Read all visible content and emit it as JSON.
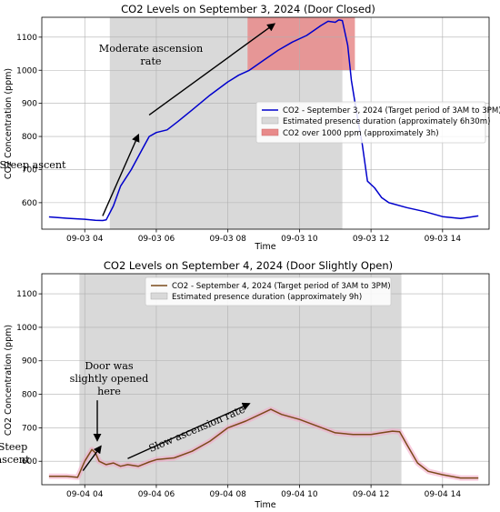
{
  "chart_data": [
    {
      "type": "line",
      "title": "CO2 Levels on September 3, 2024 (Door Closed)",
      "xlabel": "Time",
      "ylabel": "CO2 Concentration (ppm)",
      "xlim": [
        2.8,
        15.3
      ],
      "ylim": [
        520,
        1160
      ],
      "x_ticks": [
        4,
        6,
        8,
        10,
        12,
        14
      ],
      "x_tick_labels": [
        "09-03 04",
        "09-03 06",
        "09-03 08",
        "09-03 10",
        "09-03 12",
        "09-03 14"
      ],
      "y_ticks": [
        600,
        700,
        800,
        900,
        1000,
        1100
      ],
      "grid": true,
      "legend_position": "center-right",
      "series": [
        {
          "name": "CO2 - September 3, 2024 (Target period of 3AM to 3PM)",
          "color": "#0000cc",
          "x": [
            3.0,
            3.5,
            4.0,
            4.3,
            4.5,
            4.6,
            4.8,
            5.0,
            5.3,
            5.6,
            5.8,
            6.0,
            6.3,
            6.6,
            7.0,
            7.5,
            8.0,
            8.3,
            8.6,
            9.0,
            9.4,
            9.8,
            10.2,
            10.4,
            10.6,
            10.8,
            11.0,
            11.1,
            11.2,
            11.35,
            11.45,
            11.6,
            11.75,
            11.9,
            12.1,
            12.3,
            12.5,
            13.0,
            13.5,
            14.0,
            14.5,
            15.0
          ],
          "values": [
            557,
            553,
            550,
            547,
            546,
            548,
            590,
            650,
            700,
            760,
            800,
            812,
            820,
            845,
            880,
            925,
            965,
            985,
            1000,
            1030,
            1060,
            1085,
            1105,
            1120,
            1135,
            1148,
            1145,
            1152,
            1150,
            1075,
            970,
            870,
            780,
            665,
            645,
            615,
            600,
            585,
            573,
            558,
            552,
            560
          ]
        }
      ],
      "shaded_regions": [
        {
          "label": "Estimated presence duration (approximately 6h30m)",
          "color": "#d9d9d9",
          "x_start": 4.7,
          "x_end": 11.2
        },
        {
          "label": "CO2 over 1000 ppm (approximately 3h)",
          "color": "#e88a8a",
          "x_start": 8.55,
          "x_end": 11.55,
          "y_start": 1000,
          "y_end": 1160
        }
      ],
      "annotations": [
        {
          "lines": [
            "Moderate ascension",
            "rate"
          ],
          "arrow_from": [
            5.8,
            865
          ],
          "arrow_to": [
            9.3,
            1140
          ]
        },
        {
          "lines": [
            "Steep ascent"
          ],
          "arrow_from": [
            4.5,
            560
          ],
          "arrow_to": [
            5.5,
            805
          ]
        }
      ]
    },
    {
      "type": "line",
      "title": "CO2 Levels on September 4, 2024 (Door Slightly Open)",
      "xlabel": "Time",
      "ylabel": "CO2 Concentration (ppm)",
      "xlim": [
        2.8,
        15.3
      ],
      "ylim": [
        530,
        1160
      ],
      "x_ticks": [
        4,
        6,
        8,
        10,
        12,
        14
      ],
      "x_tick_labels": [
        "09-04 04",
        "09-04 06",
        "09-04 08",
        "09-04 10",
        "09-04 12",
        "09-04 14"
      ],
      "y_ticks": [
        600,
        700,
        800,
        900,
        1000,
        1100
      ],
      "grid": true,
      "legend_position": "top-right",
      "series": [
        {
          "name": "CO2 - September 4, 2024 (Target period of 3AM to 3PM)",
          "color": "#7a4a1a",
          "x": [
            3.0,
            3.5,
            3.8,
            4.0,
            4.2,
            4.3,
            4.4,
            4.6,
            4.8,
            5.0,
            5.2,
            5.5,
            5.8,
            6.0,
            6.5,
            7.0,
            7.5,
            8.0,
            8.5,
            9.0,
            9.2,
            9.5,
            10.0,
            10.5,
            11.0,
            11.5,
            12.0,
            12.3,
            12.6,
            12.8,
            13.0,
            13.3,
            13.6,
            14.0,
            14.5,
            15.0
          ],
          "values": [
            555,
            555,
            552,
            600,
            635,
            625,
            600,
            590,
            595,
            585,
            590,
            585,
            598,
            605,
            610,
            630,
            660,
            700,
            720,
            745,
            755,
            740,
            725,
            705,
            685,
            680,
            680,
            685,
            690,
            688,
            650,
            595,
            570,
            560,
            550,
            550
          ]
        }
      ],
      "shaded_regions": [
        {
          "label": "Estimated presence duration (approximately 9h)",
          "color": "#d9d9d9",
          "x_start": 3.85,
          "x_end": 12.85
        }
      ],
      "annotations": [
        {
          "lines": [
            "Door was",
            "slightly opened",
            "here"
          ],
          "arrow_from": [
            4.35,
            782
          ],
          "arrow_to": [
            4.35,
            662
          ]
        },
        {
          "lines": [
            "Slow ascension rate"
          ],
          "arrow_from": [
            5.2,
            608
          ],
          "arrow_to": [
            8.6,
            772
          ]
        },
        {
          "lines": [
            "Steep",
            "ascent"
          ],
          "arrow_from": [
            3.95,
            572
          ],
          "arrow_to": [
            4.45,
            645
          ]
        }
      ]
    }
  ]
}
